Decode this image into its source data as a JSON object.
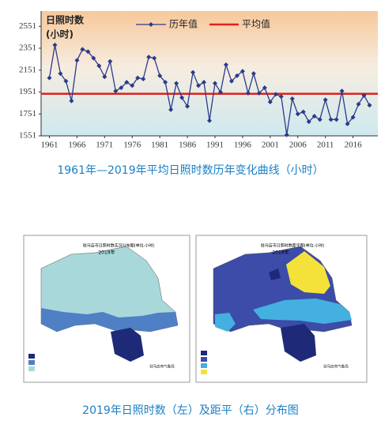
{
  "chart_data": {
    "type": "line",
    "y_label": [
      "日照时数",
      "(小时)"
    ],
    "x": [
      1961,
      1962,
      1963,
      1964,
      1965,
      1966,
      1967,
      1968,
      1969,
      1970,
      1971,
      1972,
      1973,
      1974,
      1975,
      1976,
      1977,
      1978,
      1979,
      1980,
      1981,
      1982,
      1983,
      1984,
      1985,
      1986,
      1987,
      1988,
      1989,
      1990,
      1991,
      1992,
      1993,
      1994,
      1995,
      1996,
      1997,
      1998,
      1999,
      2000,
      2001,
      2002,
      2003,
      2004,
      2005,
      2006,
      2007,
      2008,
      2009,
      2010,
      2011,
      2012,
      2013,
      2014,
      2015,
      2016,
      2017,
      2018,
      2019
    ],
    "series": [
      {
        "name": "历年值",
        "color": "#2b3a8c",
        "values": [
          2080,
          2380,
          2120,
          2050,
          1870,
          2240,
          2340,
          2320,
          2260,
          2190,
          2090,
          2230,
          1960,
          1990,
          2040,
          2010,
          2080,
          2070,
          2270,
          2260,
          2100,
          2040,
          1790,
          2030,
          1900,
          1820,
          2130,
          2010,
          2040,
          1690,
          2030,
          1950,
          2200,
          2050,
          2100,
          2140,
          1940,
          2120,
          1940,
          1990,
          1860,
          1930,
          1910,
          1560,
          1890,
          1750,
          1770,
          1680,
          1730,
          1700,
          1880,
          1700,
          1700,
          1960,
          1660,
          1720,
          1840,
          1920,
          1830
        ]
      }
    ],
    "mean_line": {
      "name": "平均值",
      "value": 1935,
      "color": "#e0201c"
    },
    "xlim": [
      1959.5,
      2020.5
    ],
    "xticks": [
      1961,
      1966,
      1971,
      1976,
      1981,
      1986,
      1991,
      1996,
      2001,
      2006,
      2011,
      2016
    ],
    "ylim": [
      1551,
      2690
    ],
    "yticks": [
      1551,
      1751,
      1951,
      2151,
      2351,
      2551
    ],
    "caption": "1961年—2019年平均日照时数历年变化曲线（小时）"
  },
  "maps": {
    "left_title": "驻马店市日照时数实况分布图(单位:小时)",
    "right_title": "驻马店市日照时数距平图(单位:小时)",
    "year": "2019年",
    "credit": "驻马店市气象局",
    "caption": "2019年日照时数（左）及距平（右）分布图"
  }
}
